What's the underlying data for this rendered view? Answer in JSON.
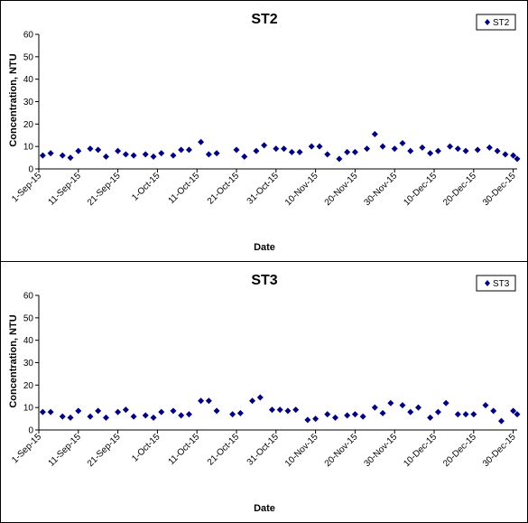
{
  "chart_data": [
    {
      "type": "scatter",
      "title": "ST2",
      "xlabel": "Date",
      "ylabel": "Concentration, NTU",
      "ylim": [
        0,
        60
      ],
      "xlim": [
        "2015-09-01",
        "2015-12-31"
      ],
      "y_ticks": [
        "0",
        "10",
        "20",
        "30",
        "40",
        "50",
        "60"
      ],
      "x_ticks": [
        "1-Sep-15",
        "11-Sep-15",
        "21-Sep-15",
        "1-Oct-15",
        "11-Oct-15",
        "21-Oct-15",
        "31-Oct-15",
        "10-Nov-15",
        "20-Nov-15",
        "30-Nov-15",
        "10-Dec-15",
        "20-Dec-15",
        "30-Dec-15"
      ],
      "legend": "top-right",
      "marker_color": "#000080",
      "series": [
        {
          "name": "ST2",
          "points": [
            {
              "x": "2015-09-02",
              "y": 6
            },
            {
              "x": "2015-09-04",
              "y": 7
            },
            {
              "x": "2015-09-07",
              "y": 6
            },
            {
              "x": "2015-09-09",
              "y": 5
            },
            {
              "x": "2015-09-11",
              "y": 8
            },
            {
              "x": "2015-09-14",
              "y": 9
            },
            {
              "x": "2015-09-16",
              "y": 8.5
            },
            {
              "x": "2015-09-18",
              "y": 5.5
            },
            {
              "x": "2015-09-21",
              "y": 8
            },
            {
              "x": "2015-09-23",
              "y": 6.5
            },
            {
              "x": "2015-09-25",
              "y": 6
            },
            {
              "x": "2015-09-28",
              "y": 6.5
            },
            {
              "x": "2015-09-30",
              "y": 5.5
            },
            {
              "x": "2015-10-02",
              "y": 7
            },
            {
              "x": "2015-10-05",
              "y": 6
            },
            {
              "x": "2015-10-07",
              "y": 8.5
            },
            {
              "x": "2015-10-09",
              "y": 8.5
            },
            {
              "x": "2015-10-12",
              "y": 12
            },
            {
              "x": "2015-10-14",
              "y": 6.5
            },
            {
              "x": "2015-10-16",
              "y": 7
            },
            {
              "x": "2015-10-21",
              "y": 8.5
            },
            {
              "x": "2015-10-23",
              "y": 5.5
            },
            {
              "x": "2015-10-26",
              "y": 8
            },
            {
              "x": "2015-10-28",
              "y": 10.5
            },
            {
              "x": "2015-10-31",
              "y": 9
            },
            {
              "x": "2015-11-02",
              "y": 9
            },
            {
              "x": "2015-11-04",
              "y": 7.5
            },
            {
              "x": "2015-11-06",
              "y": 7.5
            },
            {
              "x": "2015-11-09",
              "y": 10
            },
            {
              "x": "2015-11-11",
              "y": 10
            },
            {
              "x": "2015-11-13",
              "y": 6.5
            },
            {
              "x": "2015-11-16",
              "y": 4.5
            },
            {
              "x": "2015-11-18",
              "y": 7.5
            },
            {
              "x": "2015-11-20",
              "y": 7.5
            },
            {
              "x": "2015-11-23",
              "y": 9
            },
            {
              "x": "2015-11-25",
              "y": 15.5
            },
            {
              "x": "2015-11-27",
              "y": 10
            },
            {
              "x": "2015-11-30",
              "y": 9
            },
            {
              "x": "2015-12-02",
              "y": 11.5
            },
            {
              "x": "2015-12-04",
              "y": 8
            },
            {
              "x": "2015-12-07",
              "y": 9.5
            },
            {
              "x": "2015-12-09",
              "y": 7
            },
            {
              "x": "2015-12-11",
              "y": 8
            },
            {
              "x": "2015-12-14",
              "y": 10
            },
            {
              "x": "2015-12-16",
              "y": 9
            },
            {
              "x": "2015-12-18",
              "y": 8
            },
            {
              "x": "2015-12-21",
              "y": 8.5
            },
            {
              "x": "2015-12-24",
              "y": 9.5
            },
            {
              "x": "2015-12-26",
              "y": 8
            },
            {
              "x": "2015-12-28",
              "y": 6.5
            },
            {
              "x": "2015-12-30",
              "y": 6
            },
            {
              "x": "2015-12-31",
              "y": 4.5
            }
          ]
        }
      ]
    },
    {
      "type": "scatter",
      "title": "ST3",
      "xlabel": "Date",
      "ylabel": "Concentration, NTU",
      "ylim": [
        0,
        60
      ],
      "xlim": [
        "2015-09-01",
        "2015-12-31"
      ],
      "y_ticks": [
        "0",
        "10",
        "20",
        "30",
        "40",
        "50",
        "60"
      ],
      "x_ticks": [
        "1-Sep-15",
        "11-Sep-15",
        "21-Sep-15",
        "1-Oct-15",
        "11-Oct-15",
        "21-Oct-15",
        "31-Oct-15",
        "10-Nov-15",
        "20-Nov-15",
        "30-Nov-15",
        "10-Dec-15",
        "20-Dec-15",
        "30-Dec-15"
      ],
      "legend": "top-right",
      "marker_color": "#000080",
      "series": [
        {
          "name": "ST3",
          "points": [
            {
              "x": "2015-09-02",
              "y": 8
            },
            {
              "x": "2015-09-04",
              "y": 8
            },
            {
              "x": "2015-09-07",
              "y": 6
            },
            {
              "x": "2015-09-09",
              "y": 5.5
            },
            {
              "x": "2015-09-11",
              "y": 8.5
            },
            {
              "x": "2015-09-14",
              "y": 6
            },
            {
              "x": "2015-09-16",
              "y": 8.5
            },
            {
              "x": "2015-09-18",
              "y": 5.5
            },
            {
              "x": "2015-09-21",
              "y": 8
            },
            {
              "x": "2015-09-23",
              "y": 9
            },
            {
              "x": "2015-09-25",
              "y": 6
            },
            {
              "x": "2015-09-28",
              "y": 6.5
            },
            {
              "x": "2015-09-30",
              "y": 5.5
            },
            {
              "x": "2015-10-02",
              "y": 8
            },
            {
              "x": "2015-10-05",
              "y": 8.5
            },
            {
              "x": "2015-10-07",
              "y": 6.5
            },
            {
              "x": "2015-10-09",
              "y": 7
            },
            {
              "x": "2015-10-12",
              "y": 13
            },
            {
              "x": "2015-10-14",
              "y": 13
            },
            {
              "x": "2015-10-16",
              "y": 8.5
            },
            {
              "x": "2015-10-20",
              "y": 7
            },
            {
              "x": "2015-10-22",
              "y": 7.5
            },
            {
              "x": "2015-10-25",
              "y": 13
            },
            {
              "x": "2015-10-27",
              "y": 14.5
            },
            {
              "x": "2015-10-30",
              "y": 9
            },
            {
              "x": "2015-11-01",
              "y": 9
            },
            {
              "x": "2015-11-03",
              "y": 8.5
            },
            {
              "x": "2015-11-05",
              "y": 9
            },
            {
              "x": "2015-11-08",
              "y": 4.5
            },
            {
              "x": "2015-11-10",
              "y": 5
            },
            {
              "x": "2015-11-13",
              "y": 7
            },
            {
              "x": "2015-11-15",
              "y": 5.5
            },
            {
              "x": "2015-11-18",
              "y": 6.5
            },
            {
              "x": "2015-11-20",
              "y": 7
            },
            {
              "x": "2015-11-22",
              "y": 6
            },
            {
              "x": "2015-11-25",
              "y": 10
            },
            {
              "x": "2015-11-27",
              "y": 7.5
            },
            {
              "x": "2015-11-29",
              "y": 12
            },
            {
              "x": "2015-12-02",
              "y": 11
            },
            {
              "x": "2015-12-04",
              "y": 8
            },
            {
              "x": "2015-12-06",
              "y": 10
            },
            {
              "x": "2015-12-09",
              "y": 5.5
            },
            {
              "x": "2015-12-11",
              "y": 8
            },
            {
              "x": "2015-12-13",
              "y": 12
            },
            {
              "x": "2015-12-16",
              "y": 7
            },
            {
              "x": "2015-12-18",
              "y": 7
            },
            {
              "x": "2015-12-20",
              "y": 7
            },
            {
              "x": "2015-12-23",
              "y": 11
            },
            {
              "x": "2015-12-25",
              "y": 8.5
            },
            {
              "x": "2015-12-27",
              "y": 4
            },
            {
              "x": "2015-12-30",
              "y": 8.5
            },
            {
              "x": "2015-12-31",
              "y": 7
            }
          ]
        }
      ]
    }
  ]
}
